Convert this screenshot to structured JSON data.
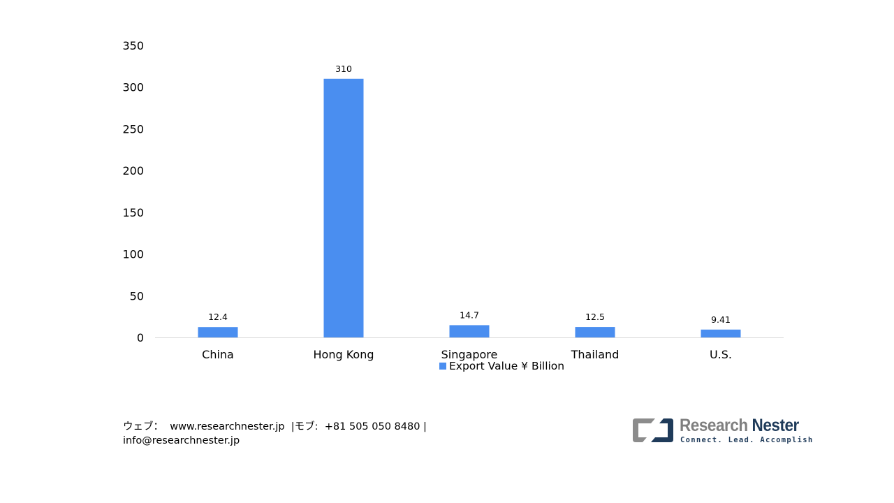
{
  "chart_data": {
    "type": "bar",
    "categories": [
      "China",
      "Hong Kong",
      "Singapore",
      "Thailand",
      "U.S."
    ],
    "series": [
      {
        "name": "Export Value ¥ Billion",
        "values": [
          12.4,
          310,
          14.7,
          12.5,
          9.41
        ],
        "value_labels": [
          "12.4",
          "310",
          "14.7",
          "12.5",
          "9.41"
        ],
        "color": "#4a8ef0"
      }
    ],
    "yticks": [
      0,
      50,
      100,
      150,
      200,
      250,
      300,
      350
    ],
    "ylim": [
      0,
      350
    ],
    "grid": false,
    "legend_position": "bottom",
    "axis_color": "#d9d9d9"
  },
  "footer": {
    "line1": "ウェブ：  www.researchnester.jp  |モブ:  +81 505 050 8480 |",
    "line2": "info@researchnester.jp"
  },
  "logo": {
    "name_part1": "Research",
    "name_part2": "Nester",
    "tagline": "Connect. Lead. Accomplish",
    "color_gray": "#7f7f7f",
    "color_navy": "#1f3b5a"
  }
}
